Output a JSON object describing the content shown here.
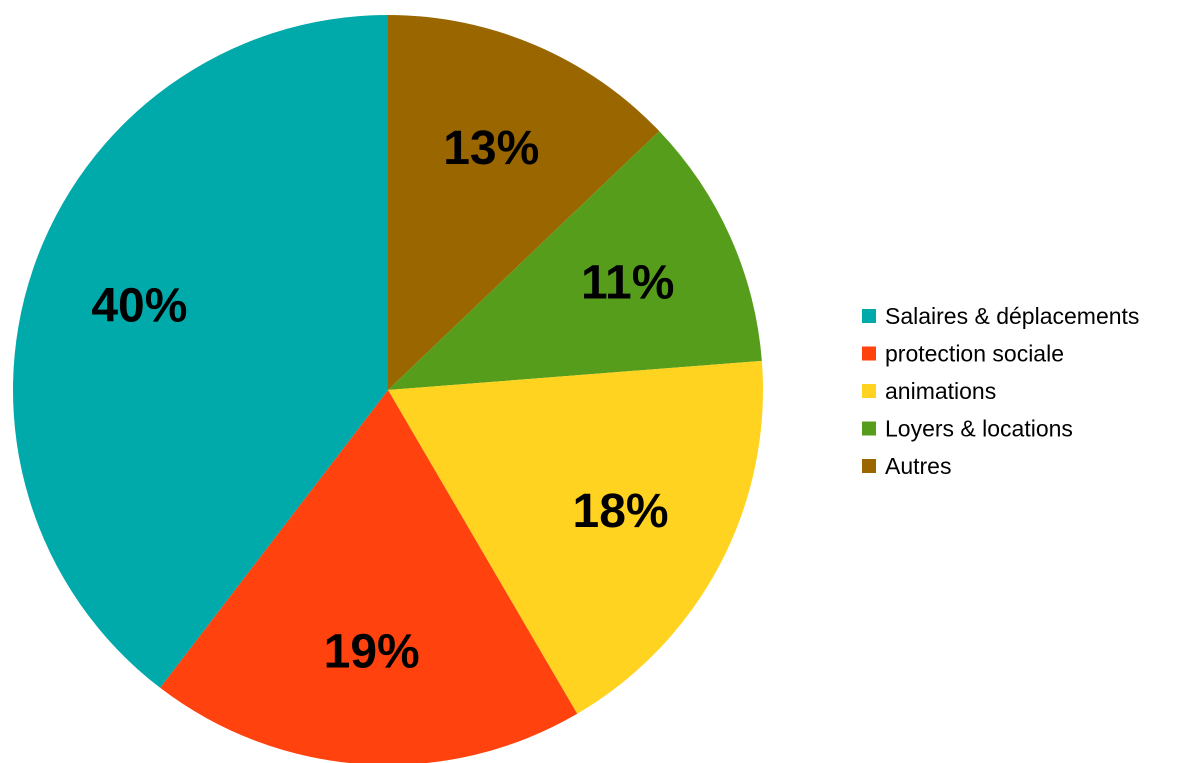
{
  "chart_data": {
    "type": "pie",
    "title": "",
    "start_angle_deg": 90,
    "direction": "clockwise",
    "legend_position": "right",
    "slices": [
      {
        "label": "Autres",
        "value": 13,
        "value_label": "13%",
        "color": "#996600"
      },
      {
        "label": "Loyers & locations",
        "value": 11,
        "value_label": "11%",
        "color": "#579d1c"
      },
      {
        "label": "animations",
        "value": 18,
        "value_label": "18%",
        "color": "#ffd320"
      },
      {
        "label": "protection sociale",
        "value": 19,
        "value_label": "19%",
        "color": "#ff420e"
      },
      {
        "label": "Salaires & déplacements",
        "value": 40,
        "value_label": "40%",
        "color": "#00a9aa"
      }
    ],
    "legend": [
      {
        "label": "Salaires & déplacements",
        "color": "#00a9aa"
      },
      {
        "label": "protection sociale",
        "color": "#ff420e"
      },
      {
        "label": "animations",
        "color": "#ffd320"
      },
      {
        "label": "Loyers & locations",
        "color": "#579d1c"
      },
      {
        "label": "Autres",
        "color": "#996600"
      }
    ]
  }
}
